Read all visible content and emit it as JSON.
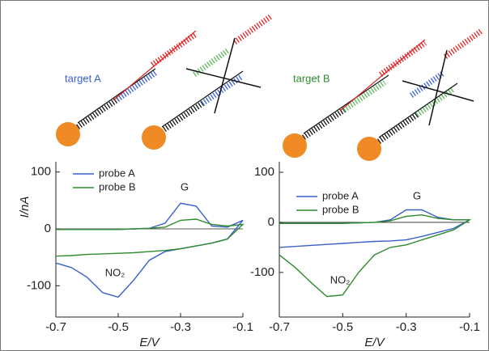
{
  "diagram": {
    "labels": [
      "target A",
      "target B"
    ]
  },
  "chart_data": [
    {
      "type": "line",
      "x_label": "E/V",
      "y_label": "I/nA",
      "x": [
        -0.7,
        -0.65,
        -0.6,
        -0.55,
        -0.5,
        -0.45,
        -0.4,
        -0.35,
        -0.3,
        -0.25,
        -0.2,
        -0.15,
        -0.1,
        -0.15,
        -0.2,
        -0.25,
        -0.3,
        -0.35,
        -0.4,
        -0.45,
        -0.5,
        -0.55,
        -0.6,
        -0.65,
        -0.7
      ],
      "series": [
        {
          "name": "probe A",
          "color": "#3a5fcd",
          "values": [
            -1,
            -1,
            -1,
            -1,
            -1,
            0,
            1,
            10,
            45,
            40,
            5,
            3,
            15,
            -18,
            -25,
            -30,
            -35,
            -40,
            -55,
            -90,
            -120,
            -112,
            -85,
            -68,
            -60
          ]
        },
        {
          "name": "probe B",
          "color": "#2e8b2e",
          "values": [
            -1,
            -1,
            -1,
            -1,
            -1,
            0,
            1,
            3,
            15,
            17,
            8,
            5,
            8,
            -18,
            -25,
            -30,
            -35,
            -38,
            -40,
            -42,
            -43,
            -44,
            -45,
            -47,
            -48
          ]
        }
      ],
      "annotations": [
        "G",
        "NO₂"
      ],
      "xlim": [
        -0.7,
        -0.1
      ],
      "ylim": [
        -155,
        118
      ],
      "xticks": [
        -0.7,
        -0.5,
        -0.3,
        -0.1
      ],
      "yticks": [
        -100,
        0,
        100
      ]
    },
    {
      "type": "line",
      "x_label": "E/V",
      "x": [
        -0.7,
        -0.65,
        -0.6,
        -0.55,
        -0.5,
        -0.45,
        -0.4,
        -0.35,
        -0.3,
        -0.25,
        -0.2,
        -0.15,
        -0.1,
        -0.15,
        -0.2,
        -0.25,
        -0.3,
        -0.35,
        -0.4,
        -0.45,
        -0.5,
        -0.55,
        -0.6,
        -0.65,
        -0.7
      ],
      "series": [
        {
          "name": "probe A",
          "color": "#3a5fcd",
          "values": [
            -2,
            -2,
            -2,
            -2,
            -2,
            -1,
            0,
            5,
            25,
            25,
            10,
            5,
            5,
            -12,
            -20,
            -28,
            -35,
            -37,
            -38,
            -40,
            -42,
            -44,
            -46,
            -48,
            -50
          ]
        },
        {
          "name": "probe B",
          "color": "#2e8b2e",
          "values": [
            -2,
            -2,
            -2,
            -2,
            -2,
            -1,
            0,
            3,
            12,
            15,
            8,
            5,
            5,
            -15,
            -25,
            -35,
            -45,
            -50,
            -65,
            -100,
            -145,
            -148,
            -120,
            -90,
            -65
          ]
        }
      ],
      "annotations": [
        "G",
        "NO₂"
      ],
      "xlim": [
        -0.7,
        -0.1
      ],
      "ylim": [
        -189,
        121
      ],
      "xticks": [
        -0.7,
        -0.5,
        -0.3,
        -0.1
      ],
      "yticks": [
        -100,
        0,
        100
      ]
    }
  ]
}
